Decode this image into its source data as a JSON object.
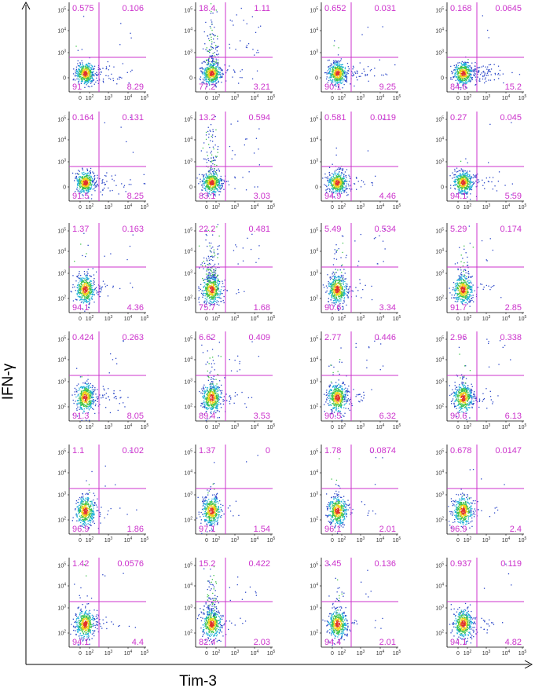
{
  "figure": {
    "x_axis_title": "Tim-3",
    "y_axis_title": "IFN-γ",
    "gate_color": "#cc33cc",
    "label_color": "#cc33cc"
  },
  "chart_data": {
    "type": "scatter",
    "plot_kind": "flow-cytometry density dot plots with quadrant gates",
    "xlabel": "Tim-3",
    "ylabel": "IFN-γ",
    "x_scale": "biexponential",
    "y_scale": "biexponential",
    "grid": "6 rows x 4 columns",
    "quadrant_order": [
      "upper-left",
      "upper-right",
      "lower-left",
      "lower-right"
    ],
    "panels": [
      {
        "row": 1,
        "col": 1,
        "x_ticks": [
          "0",
          "10^2",
          "10^3",
          "10^4",
          "10^5"
        ],
        "y_ticks": [
          "0",
          "10^3",
          "10^4",
          "10^5"
        ],
        "quadrants": {
          "ul": "0.575",
          "ur": "0.106",
          "ll": "91",
          "lr": "8.29"
        }
      },
      {
        "row": 1,
        "col": 2,
        "x_ticks": [
          "0",
          "10^2",
          "10^3",
          "10^4",
          "10^5"
        ],
        "y_ticks": [
          "0",
          "10^3",
          "10^4",
          "10^5"
        ],
        "quadrants": {
          "ul": "18.4",
          "ur": "1.11",
          "ll": "77.2",
          "lr": "3.21"
        }
      },
      {
        "row": 1,
        "col": 3,
        "x_ticks": [
          "0",
          "10^2",
          "10^3",
          "10^4",
          "10^5"
        ],
        "y_ticks": [
          "0",
          "10^3",
          "10^4",
          "10^5"
        ],
        "quadrants": {
          "ul": "0.652",
          "ur": "0.031",
          "ll": "90.1",
          "lr": "9.25"
        }
      },
      {
        "row": 1,
        "col": 4,
        "x_ticks": [
          "0",
          "10^2",
          "10^3",
          "10^4",
          "10^5"
        ],
        "y_ticks": [
          "0",
          "10^3",
          "10^4",
          "10^5"
        ],
        "quadrants": {
          "ul": "0.168",
          "ur": "0.0645",
          "ll": "84.6",
          "lr": "15.2"
        }
      },
      {
        "row": 2,
        "col": 1,
        "x_ticks": [
          "0",
          "10^2",
          "10^3",
          "10^4",
          "10^5"
        ],
        "y_ticks": [
          "0",
          "10^3",
          "10^4",
          "10^5"
        ],
        "quadrants": {
          "ul": "0.164",
          "ur": "0.131",
          "ll": "91.5",
          "lr": "8.25"
        }
      },
      {
        "row": 2,
        "col": 2,
        "x_ticks": [
          "0",
          "10^2",
          "10^3",
          "10^4",
          "10^5"
        ],
        "y_ticks": [
          "0",
          "10^3",
          "10^4",
          "10^5"
        ],
        "quadrants": {
          "ul": "13.2",
          "ur": "0.594",
          "ll": "83.1",
          "lr": "3.03"
        }
      },
      {
        "row": 2,
        "col": 3,
        "x_ticks": [
          "0",
          "10^2",
          "10^3",
          "10^4",
          "10^5"
        ],
        "y_ticks": [
          "0",
          "10^3",
          "10^4",
          "10^5"
        ],
        "quadrants": {
          "ul": "0.581",
          "ur": "0.0119",
          "ll": "94.9",
          "lr": "4.46"
        }
      },
      {
        "row": 2,
        "col": 4,
        "x_ticks": [
          "0",
          "10^2",
          "10^3",
          "10^4",
          "10^5"
        ],
        "y_ticks": [
          "0",
          "10^3",
          "10^4",
          "10^5"
        ],
        "quadrants": {
          "ul": "0.27",
          "ur": "0.045",
          "ll": "94.1",
          "lr": "5.59"
        }
      },
      {
        "row": 3,
        "col": 1,
        "x_ticks": [
          "0",
          "10^2",
          "10^3",
          "10^4",
          "10^5"
        ],
        "y_ticks": [
          "10^2",
          "10^3",
          "10^4",
          "10^5"
        ],
        "quadrants": {
          "ul": "1.37",
          "ur": "0.163",
          "ll": "94.1",
          "lr": "4.36"
        }
      },
      {
        "row": 3,
        "col": 2,
        "x_ticks": [
          "0",
          "10^2",
          "10^3",
          "10^4",
          "10^5"
        ],
        "y_ticks": [
          "10^2",
          "10^3",
          "10^4",
          "10^5"
        ],
        "quadrants": {
          "ul": "22.2",
          "ur": "0.481",
          "ll": "75.7",
          "lr": "1.68"
        }
      },
      {
        "row": 3,
        "col": 3,
        "x_ticks": [
          "0",
          "10^2",
          "10^3",
          "10^4",
          "10^5"
        ],
        "y_ticks": [
          "10^2",
          "10^3",
          "10^4",
          "10^5"
        ],
        "quadrants": {
          "ul": "5.49",
          "ur": "0.534",
          "ll": "90.6",
          "lr": "3.34"
        }
      },
      {
        "row": 3,
        "col": 4,
        "x_ticks": [
          "0",
          "10^2",
          "10^3",
          "10^4",
          "10^5"
        ],
        "y_ticks": [
          "10^2",
          "10^3",
          "10^4",
          "10^5"
        ],
        "quadrants": {
          "ul": "5.29",
          "ur": "0.174",
          "ll": "91.7",
          "lr": "2.85"
        }
      },
      {
        "row": 4,
        "col": 1,
        "x_ticks": [
          "0",
          "10^2",
          "10^3",
          "10^4",
          "10^5"
        ],
        "y_ticks": [
          "10^2",
          "10^3",
          "10^4",
          "10^5"
        ],
        "quadrants": {
          "ul": "0.424",
          "ur": "0.263",
          "ll": "91.3",
          "lr": "8.05"
        }
      },
      {
        "row": 4,
        "col": 2,
        "x_ticks": [
          "0",
          "10^2",
          "10^3",
          "10^4",
          "10^5"
        ],
        "y_ticks": [
          "10^2",
          "10^3",
          "10^4",
          "10^5"
        ],
        "quadrants": {
          "ul": "6.62",
          "ur": "0.409",
          "ll": "89.4",
          "lr": "3.53"
        }
      },
      {
        "row": 4,
        "col": 3,
        "x_ticks": [
          "0",
          "10^2",
          "10^3",
          "10^4",
          "10^5"
        ],
        "y_ticks": [
          "10^2",
          "10^3",
          "10^4",
          "10^5"
        ],
        "quadrants": {
          "ul": "2.77",
          "ur": "0.446",
          "ll": "90.5",
          "lr": "6.32"
        }
      },
      {
        "row": 4,
        "col": 4,
        "x_ticks": [
          "0",
          "10^2",
          "10^3",
          "10^4",
          "10^5"
        ],
        "y_ticks": [
          "10^2",
          "10^3",
          "10^4",
          "10^5"
        ],
        "quadrants": {
          "ul": "2.96",
          "ur": "0.338",
          "ll": "90.6",
          "lr": "6.13"
        }
      },
      {
        "row": 5,
        "col": 1,
        "x_ticks": [
          "0",
          "10^2",
          "10^3",
          "10^4",
          "10^5"
        ],
        "y_ticks": [
          "10^2",
          "10^3",
          "10^4",
          "10^5"
        ],
        "quadrants": {
          "ul": "1.1",
          "ur": "0.102",
          "ll": "96.9",
          "lr": "1.86"
        }
      },
      {
        "row": 5,
        "col": 2,
        "x_ticks": [
          "0",
          "10^2",
          "10^3",
          "10^4",
          "10^5"
        ],
        "y_ticks": [
          "10^2",
          "10^3",
          "10^4",
          "10^5"
        ],
        "quadrants": {
          "ul": "1.37",
          "ur": "0",
          "ll": "97.1",
          "lr": "1.54"
        }
      },
      {
        "row": 5,
        "col": 3,
        "x_ticks": [
          "0",
          "10^2",
          "10^3",
          "10^4",
          "10^5"
        ],
        "y_ticks": [
          "10^2",
          "10^3",
          "10^4",
          "10^5"
        ],
        "quadrants": {
          "ul": "1.78",
          "ur": "0.0874",
          "ll": "96.1",
          "lr": "2.01"
        }
      },
      {
        "row": 5,
        "col": 4,
        "x_ticks": [
          "0",
          "10^2",
          "10^3",
          "10^4",
          "10^5"
        ],
        "y_ticks": [
          "10^2",
          "10^3",
          "10^4",
          "10^5"
        ],
        "quadrants": {
          "ul": "0.678",
          "ur": "0.0147",
          "ll": "96.9",
          "lr": "2.4"
        }
      },
      {
        "row": 6,
        "col": 1,
        "x_ticks": [
          "0",
          "10^2",
          "10^3",
          "10^4",
          "10^5"
        ],
        "y_ticks": [
          "10^2",
          "10^3",
          "10^4",
          "10^5"
        ],
        "quadrants": {
          "ul": "1.42",
          "ur": "0.0576",
          "ll": "94.1",
          "lr": "4.4"
        }
      },
      {
        "row": 6,
        "col": 2,
        "x_ticks": [
          "0",
          "10^2",
          "10^3",
          "10^4",
          "10^5"
        ],
        "y_ticks": [
          "10^2",
          "10^3",
          "10^4",
          "10^5"
        ],
        "quadrants": {
          "ul": "15.2",
          "ur": "0.422",
          "ll": "82.4",
          "lr": "2.03"
        }
      },
      {
        "row": 6,
        "col": 3,
        "x_ticks": [
          "0",
          "10^2",
          "10^3",
          "10^4",
          "10^5"
        ],
        "y_ticks": [
          "10^2",
          "10^3",
          "10^4",
          "10^5"
        ],
        "quadrants": {
          "ul": "3.45",
          "ur": "0.136",
          "ll": "94.4",
          "lr": "2.01"
        }
      },
      {
        "row": 6,
        "col": 4,
        "x_ticks": [
          "0",
          "10^2",
          "10^3",
          "10^4",
          "10^5"
        ],
        "y_ticks": [
          "10^2",
          "10^3",
          "10^4",
          "10^5"
        ],
        "quadrants": {
          "ul": "0.937",
          "ur": "0.119",
          "ll": "94.1",
          "lr": "4.82"
        }
      }
    ]
  }
}
